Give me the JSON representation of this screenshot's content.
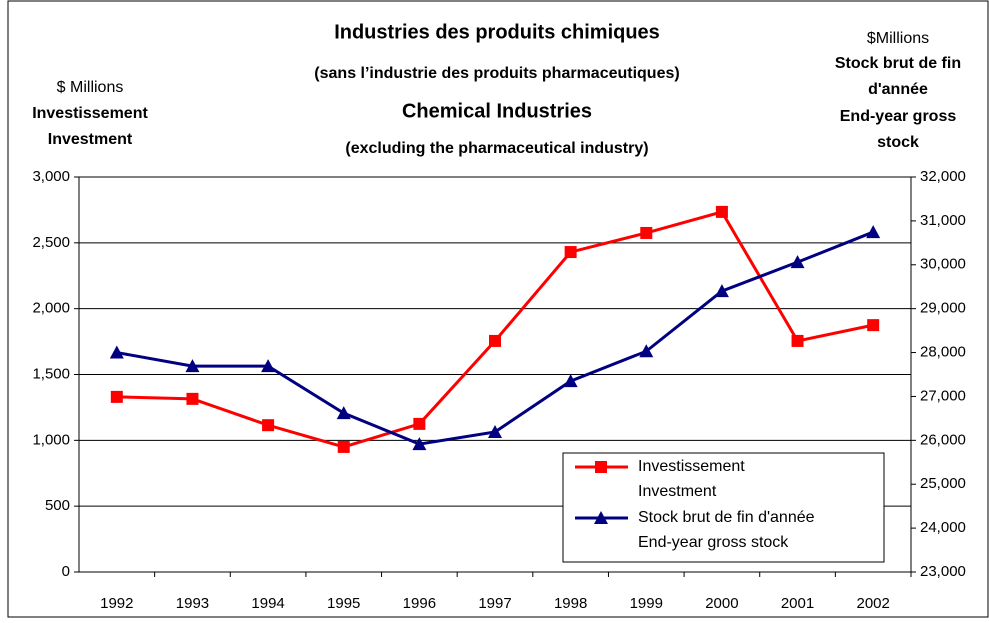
{
  "chart_data": {
    "type": "line",
    "title": [
      "Industries des produits chimiques",
      "(sans l’industrie des produits pharmaceutiques)",
      "Chemical Industries",
      "(excluding the pharmaceutical industry)"
    ],
    "y_label": [
      "$ Millions",
      "Investissement",
      "Investment"
    ],
    "y2_label": [
      "$Millions",
      "Stock brut de fin",
      "d'année",
      "End-year gross",
      "stock"
    ],
    "categories": [
      "1992",
      "1993",
      "1994",
      "1995",
      "1996",
      "1997",
      "1998",
      "1999",
      "2000",
      "2001",
      "2002"
    ],
    "series": [
      {
        "name": [
          "Investissement",
          "Investment"
        ],
        "color": "#ff0000",
        "marker": "square",
        "values": [
          1330,
          1315,
          1115,
          950,
          1125,
          1755,
          2430,
          2575,
          2735,
          1755,
          1875
        ]
      },
      {
        "name": [
          "Stock brut de fin d'année",
          "End-year gross stock"
        ],
        "color": "#000080",
        "marker": "triangle",
        "axis": "y2",
        "values": [
          28000,
          27690,
          27690,
          26620,
          25915,
          26190,
          27350,
          28030,
          29400,
          30060,
          30745
        ]
      }
    ],
    "ylim": [
      0,
      3000
    ],
    "yticks": [
      0,
      500,
      {
        "value": 1000,
        "label": "1,000"
      },
      {
        "value": 1500,
        "label": "1,500"
      },
      {
        "value": 2000,
        "label": "2,000"
      },
      {
        "value": 2500,
        "label": "2,500"
      },
      {
        "value": 3000,
        "label": "3,000"
      }
    ],
    "y2lim": [
      23000,
      32000
    ],
    "y2ticks": [
      {
        "value": 23000,
        "label": "23,000"
      },
      {
        "value": 24000,
        "label": "24,000"
      },
      {
        "value": 25000,
        "label": "25,000"
      },
      {
        "value": 26000,
        "label": "26,000"
      },
      {
        "value": 27000,
        "label": "27,000"
      },
      {
        "value": 28000,
        "label": "28,000"
      },
      {
        "value": 29000,
        "label": "29,000"
      },
      {
        "value": 30000,
        "label": "30,000"
      },
      {
        "value": 31000,
        "label": "31,000"
      },
      {
        "value": 32000,
        "label": "32,000"
      }
    ],
    "grid": true,
    "legend": "lower right"
  }
}
